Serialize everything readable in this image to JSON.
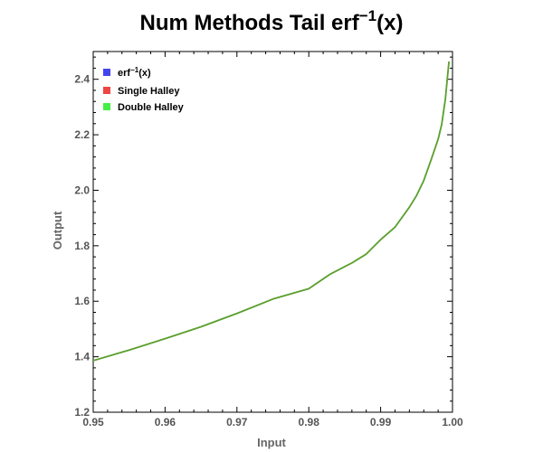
{
  "chart_data": {
    "type": "line",
    "title": "Num Methods Tail erf",
    "title_superscript": "−1",
    "title_suffix": "(x)",
    "xlabel": "Input",
    "ylabel": "Output",
    "xlim": [
      0.95,
      1.0
    ],
    "ylim": [
      1.2,
      2.5
    ],
    "x_ticks": [
      0.95,
      0.96,
      0.97,
      0.98,
      0.99,
      1.0
    ],
    "x_tick_labels": [
      "0.95",
      "0.96",
      "0.97",
      "0.98",
      "0.99",
      "1.00"
    ],
    "y_ticks": [
      1.2,
      1.4,
      1.6,
      1.8,
      2.0,
      2.2,
      2.4
    ],
    "y_tick_labels": [
      "1.2",
      "1.4",
      "1.6",
      "1.8",
      "2.0",
      "2.2",
      "2.4"
    ],
    "grid": false,
    "legend_position": "top-left",
    "x": [
      0.95,
      0.955,
      0.96,
      0.965,
      0.97,
      0.975,
      0.98,
      0.983,
      0.986,
      0.988,
      0.99,
      0.992,
      0.994,
      0.995,
      0.996,
      0.997,
      0.998,
      0.9985,
      0.999,
      0.9995
    ],
    "series": [
      {
        "name": "erf⁻¹(x)",
        "legend_base": "erf",
        "legend_sup": "−1",
        "legend_suffix": "(x)",
        "color": "#4444ee",
        "values": [
          1.386,
          1.424,
          1.465,
          1.508,
          1.556,
          1.608,
          1.645,
          1.698,
          1.738,
          1.77,
          1.822,
          1.867,
          1.939,
          1.981,
          2.035,
          2.108,
          2.184,
          2.238,
          2.327,
          2.462
        ]
      },
      {
        "name": "Single Halley",
        "color": "#ee4444",
        "values": [
          1.386,
          1.424,
          1.465,
          1.508,
          1.556,
          1.608,
          1.645,
          1.698,
          1.738,
          1.77,
          1.822,
          1.867,
          1.939,
          1.981,
          2.035,
          2.108,
          2.184,
          2.238,
          2.327,
          2.462
        ]
      },
      {
        "name": "Double Halley",
        "color": "#44ee44",
        "values": [
          1.386,
          1.424,
          1.465,
          1.508,
          1.556,
          1.608,
          1.645,
          1.698,
          1.738,
          1.77,
          1.822,
          1.867,
          1.939,
          1.981,
          2.035,
          2.108,
          2.184,
          2.238,
          2.327,
          2.462
        ]
      }
    ],
    "line_color": "#5aa02c"
  }
}
